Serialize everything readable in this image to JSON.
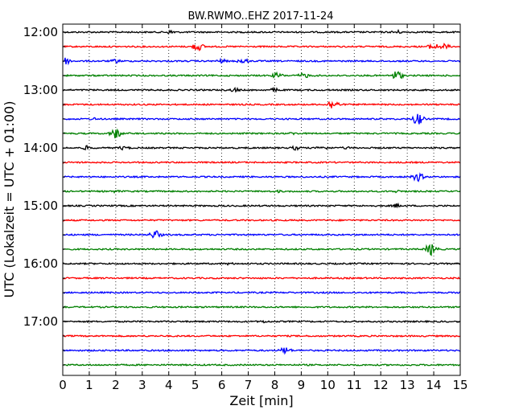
{
  "chart_data": {
    "type": "line",
    "title": "BW.RWMO..EHZ 2017-11-24",
    "xlabel": "Zeit  [min]",
    "ylabel": "UTC (Lokalzeit = UTC + 01:00)",
    "xlim": [
      0,
      15
    ],
    "x_ticks": [
      "0",
      "1",
      "2",
      "3",
      "4",
      "5",
      "6",
      "7",
      "8",
      "9",
      "10",
      "11",
      "12",
      "13",
      "14",
      "15"
    ],
    "y_tick_labels": [
      "12:00",
      "13:00",
      "14:00",
      "15:00",
      "16:00",
      "17:00"
    ],
    "grid": "vertical-dotted",
    "colors": [
      "#000000",
      "#ff0000",
      "#0000ff",
      "#008000"
    ],
    "traces": [
      {
        "start": "12:00",
        "color": "#000000",
        "events": [
          {
            "x": 4.1,
            "a": 3
          },
          {
            "x": 12.6,
            "a": 3
          }
        ]
      },
      {
        "start": "12:15",
        "color": "#ff0000",
        "events": [
          {
            "x": 5.1,
            "a": 6
          },
          {
            "x": 14.0,
            "a": 5
          },
          {
            "x": 14.4,
            "a": 4
          }
        ]
      },
      {
        "start": "12:30",
        "color": "#0000ff",
        "events": [
          {
            "x": 0.1,
            "a": 5
          },
          {
            "x": 2.0,
            "a": 3
          },
          {
            "x": 6.0,
            "a": 3
          },
          {
            "x": 6.8,
            "a": 4
          }
        ]
      },
      {
        "start": "12:45",
        "color": "#008000",
        "events": [
          {
            "x": 8.1,
            "a": 4
          },
          {
            "x": 9.1,
            "a": 4
          },
          {
            "x": 12.6,
            "a": 7
          }
        ]
      },
      {
        "start": "13:00",
        "color": "#000000",
        "events": [
          {
            "x": 6.5,
            "a": 3
          },
          {
            "x": 8.0,
            "a": 3
          }
        ]
      },
      {
        "start": "13:15",
        "color": "#ff0000",
        "events": [
          {
            "x": 10.2,
            "a": 7
          }
        ]
      },
      {
        "start": "13:30",
        "color": "#0000ff",
        "events": [
          {
            "x": 1.2,
            "a": 2
          },
          {
            "x": 13.4,
            "a": 8
          }
        ]
      },
      {
        "start": "13:45",
        "color": "#008000",
        "events": [
          {
            "x": 2.0,
            "a": 7
          },
          {
            "x": 8.7,
            "a": 2
          }
        ]
      },
      {
        "start": "14:00",
        "color": "#000000",
        "events": [
          {
            "x": 0.9,
            "a": 3
          },
          {
            "x": 2.3,
            "a": 3
          },
          {
            "x": 8.8,
            "a": 3
          },
          {
            "x": 9.8,
            "a": 3
          },
          {
            "x": 10.7,
            "a": 2
          }
        ]
      },
      {
        "start": "14:15",
        "color": "#ff0000",
        "events": []
      },
      {
        "start": "14:30",
        "color": "#0000ff",
        "events": [
          {
            "x": 13.4,
            "a": 6
          }
        ]
      },
      {
        "start": "14:45",
        "color": "#008000",
        "events": [
          {
            "x": 2.0,
            "a": 2
          },
          {
            "x": 8.1,
            "a": 2
          },
          {
            "x": 12.6,
            "a": 2
          }
        ]
      },
      {
        "start": "15:00",
        "color": "#000000",
        "events": [
          {
            "x": 12.6,
            "a": 3
          }
        ]
      },
      {
        "start": "15:15",
        "color": "#ff0000",
        "events": []
      },
      {
        "start": "15:30",
        "color": "#0000ff",
        "events": [
          {
            "x": 3.5,
            "a": 6
          }
        ]
      },
      {
        "start": "15:45",
        "color": "#008000",
        "events": [
          {
            "x": 13.9,
            "a": 8
          }
        ]
      },
      {
        "start": "16:00",
        "color": "#000000",
        "events": [
          {
            "x": 6.3,
            "a": 2
          }
        ]
      },
      {
        "start": "16:15",
        "color": "#ff0000",
        "events": []
      },
      {
        "start": "16:30",
        "color": "#0000ff",
        "events": []
      },
      {
        "start": "16:45",
        "color": "#008000",
        "events": []
      },
      {
        "start": "17:00",
        "color": "#000000",
        "events": [
          {
            "x": 7.6,
            "a": 2
          }
        ]
      },
      {
        "start": "17:15",
        "color": "#ff0000",
        "events": []
      },
      {
        "start": "17:30",
        "color": "#0000ff",
        "events": [
          {
            "x": 8.4,
            "a": 5
          }
        ]
      },
      {
        "start": "17:45",
        "color": "#008000",
        "events": []
      }
    ]
  }
}
